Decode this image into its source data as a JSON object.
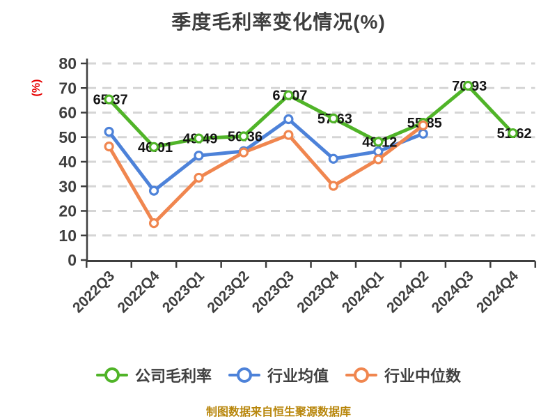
{
  "title": "季度毛利率变化情况(%)",
  "footer": "制图数据来自恒生聚源数据库",
  "colors": {
    "background": "#ffffff",
    "axis": "#3f3f3f",
    "grid": "#d5d5d5",
    "data_label": "#141414",
    "unit_label": "#e60000",
    "footer": "#b8860b",
    "title": "#3d3d3d"
  },
  "chart_data": {
    "type": "line",
    "title": "季度毛利率变化情况(%)",
    "ylabel": "(%)",
    "xlabel": "",
    "ylim": [
      0,
      80
    ],
    "ytick_interval": 10,
    "grid": "horizontal-dashed",
    "legend_position": "bottom",
    "marker": "open-circle",
    "categories": [
      "2022Q3",
      "2022Q4",
      "2023Q1",
      "2023Q2",
      "2023Q3",
      "2023Q4",
      "2024Q1",
      "2024Q2",
      "2024Q3",
      "2024Q4"
    ],
    "series": [
      {
        "name": "公司毛利率",
        "color": "#50b428",
        "show_labels": true,
        "values": [
          65.37,
          46.01,
          49.49,
          50.36,
          67.07,
          57.63,
          48.12,
          55.85,
          70.93,
          51.62
        ]
      },
      {
        "name": "行业均值",
        "color": "#4d82d9",
        "show_labels": false,
        "values": [
          52.2,
          28.2,
          42.5,
          44.3,
          57.3,
          41.2,
          44.2,
          51.4,
          null,
          null
        ]
      },
      {
        "name": "行业中位数",
        "color": "#f0864f",
        "show_labels": false,
        "values": [
          46.2,
          15.0,
          33.5,
          43.8,
          50.9,
          30.2,
          41.0,
          54.8,
          null,
          null
        ]
      }
    ]
  }
}
